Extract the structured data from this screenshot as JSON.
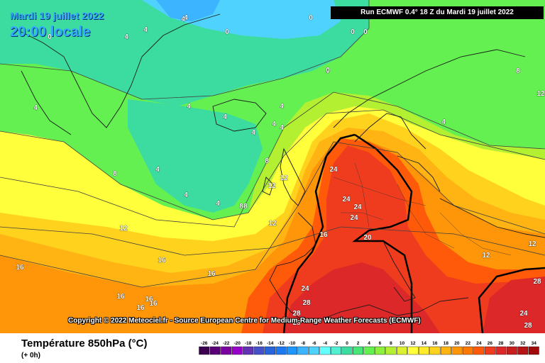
{
  "header": {
    "date_label": "Mardi 19 juillet 2022",
    "time_label": "20:00 locale",
    "run_label": "Run ECMWF 0.4° 18 Z du Mardi 19 juillet 2022"
  },
  "footer": {
    "copyright": "Copyright © 2022 Meteociel.fr - Source European Centre for Medium-Range Weather Forecasts (ECMWF)",
    "variable_title": "Température 850hPa (°C)",
    "variable_subtitle": "(+ 0h)"
  },
  "legend": {
    "values": [
      "-26",
      "-24",
      "-22",
      "-20",
      "-18",
      "-16",
      "-14",
      "-12",
      "-10",
      "-8",
      "-6",
      "-4",
      "-2",
      "0",
      "2",
      "4",
      "6",
      "8",
      "10",
      "12",
      "14",
      "16",
      "18",
      "20",
      "22",
      "24",
      "26",
      "28",
      "30",
      "32",
      "34"
    ],
    "colors": [
      "#3c0050",
      "#5a0078",
      "#7a00a0",
      "#9600c8",
      "#6432b4",
      "#4650c8",
      "#2864dc",
      "#1e78f0",
      "#1e96ff",
      "#3cb4ff",
      "#50d2ff",
      "#64ffff",
      "#50f0d2",
      "#3cdca0",
      "#46e678",
      "#64f050",
      "#8cf03c",
      "#b4f032",
      "#dcf032",
      "#ffff3c",
      "#ffeb28",
      "#ffd21e",
      "#ffb414",
      "#ff960a",
      "#ff7800",
      "#ff5a0a",
      "#f03c1e",
      "#dc2828",
      "#c81e1e",
      "#b41414",
      "#a00a0a"
    ]
  },
  "isotherm_labels": [
    {
      "text": "4"
    },
    {
      "text": "0"
    },
    {
      "text": "0"
    },
    {
      "text": "0"
    },
    {
      "text": "0"
    },
    {
      "text": "0"
    },
    {
      "text": "4"
    },
    {
      "text": "0"
    },
    {
      "text": "4"
    },
    {
      "text": "4"
    },
    {
      "text": "0"
    },
    {
      "text": "8"
    },
    {
      "text": "12"
    },
    {
      "text": "4"
    },
    {
      "text": "4"
    },
    {
      "text": "4"
    },
    {
      "text": "4"
    },
    {
      "text": "4"
    },
    {
      "text": "4"
    },
    {
      "text": "4"
    },
    {
      "text": "4"
    },
    {
      "text": "8"
    },
    {
      "text": "4"
    },
    {
      "text": "4"
    },
    {
      "text": "4"
    },
    {
      "text": "8"
    },
    {
      "text": "12"
    },
    {
      "text": "12"
    },
    {
      "text": "8"
    },
    {
      "text": "8"
    },
    {
      "text": "12"
    },
    {
      "text": "12"
    },
    {
      "text": "24"
    },
    {
      "text": "24"
    },
    {
      "text": "24"
    },
    {
      "text": "24"
    },
    {
      "text": "16"
    },
    {
      "text": "20"
    },
    {
      "text": "12"
    },
    {
      "text": "12"
    },
    {
      "text": "16"
    },
    {
      "text": "16"
    },
    {
      "text": "16"
    },
    {
      "text": "16"
    },
    {
      "text": "16"
    },
    {
      "text": "16"
    },
    {
      "text": "16"
    },
    {
      "text": "24"
    },
    {
      "text": "28"
    },
    {
      "text": "28"
    },
    {
      "text": "28"
    },
    {
      "text": "28"
    },
    {
      "text": "24"
    },
    {
      "text": "28"
    }
  ]
}
